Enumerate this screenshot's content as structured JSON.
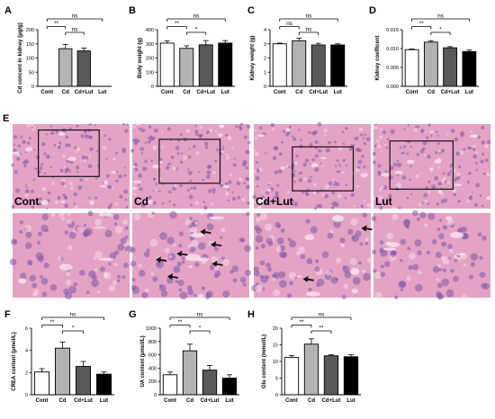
{
  "chart_data": [
    {
      "panel": "A",
      "type": "bar",
      "categories": [
        "Cont",
        "Cd",
        "Cd+Lut",
        "Lut"
      ],
      "values": [
        0,
        133,
        125,
        0
      ],
      "errors": [
        0,
        15,
        10,
        0
      ],
      "ylabel": "Cd concent in kidney (μg/g)",
      "ylim": [
        0,
        200
      ],
      "yticks": [
        "0",
        "50",
        "100",
        "150",
        "200"
      ],
      "colors": [
        "#ffffff",
        "#b3b3b3",
        "#595959",
        "#000000"
      ],
      "sig": [
        {
          "from": 0,
          "to": 3,
          "text": "ns"
        },
        {
          "from": 0,
          "to": 1,
          "text": "**"
        },
        {
          "from": 1,
          "to": 2,
          "text": "ns"
        }
      ]
    },
    {
      "panel": "B",
      "type": "bar",
      "categories": [
        "Cont",
        "Cd",
        "Cd+Lut",
        "Lut"
      ],
      "values": [
        305,
        268,
        293,
        305
      ],
      "errors": [
        15,
        18,
        30,
        18
      ],
      "ylabel": "Body weight (g)",
      "ylim": [
        0,
        400
      ],
      "yticks": [
        "0",
        "100",
        "200",
        "300",
        "400"
      ],
      "colors": [
        "#ffffff",
        "#b3b3b3",
        "#595959",
        "#000000"
      ],
      "sig": [
        {
          "from": 0,
          "to": 3,
          "text": "ns"
        },
        {
          "from": 0,
          "to": 1,
          "text": "**"
        },
        {
          "from": 1,
          "to": 2,
          "text": "*"
        }
      ]
    },
    {
      "panel": "C",
      "type": "bar",
      "categories": [
        "Cont",
        "Cd",
        "Cd+Lut",
        "Lut"
      ],
      "values": [
        3.0,
        3.22,
        2.92,
        2.92
      ],
      "errors": [
        0.05,
        0.18,
        0.12,
        0.08
      ],
      "ylabel": "Kidney weight (g)",
      "ylim": [
        0,
        4
      ],
      "yticks": [
        "0",
        "1",
        "2",
        "3",
        "4"
      ],
      "colors": [
        "#ffffff",
        "#b3b3b3",
        "#595959",
        "#000000"
      ],
      "sig": [
        {
          "from": 0,
          "to": 3,
          "text": "ns"
        },
        {
          "from": 0,
          "to": 1,
          "text": "ns"
        },
        {
          "from": 1,
          "to": 2,
          "text": "ns"
        }
      ]
    },
    {
      "panel": "D",
      "type": "bar",
      "categories": [
        "Cont",
        "Cd",
        "Cd+Lut",
        "Lut"
      ],
      "values": [
        0.0097,
        0.0117,
        0.0102,
        0.0092
      ],
      "errors": [
        0.0002,
        0.0004,
        0.0003,
        0.0004
      ],
      "ylabel": "Kidney coefficent",
      "ylim": [
        0,
        0.015
      ],
      "yticks": [
        "0.000",
        "0.005",
        "0.010",
        "0.015"
      ],
      "colors": [
        "#ffffff",
        "#b3b3b3",
        "#595959",
        "#000000"
      ],
      "sig": [
        {
          "from": 0,
          "to": 3,
          "text": "ns"
        },
        {
          "from": 0,
          "to": 1,
          "text": "**"
        },
        {
          "from": 1,
          "to": 2,
          "text": "*"
        }
      ]
    },
    {
      "panel": "F",
      "type": "bar",
      "categories": [
        "Cont",
        "Cd",
        "Cd+Lut",
        "Lut"
      ],
      "values": [
        2.05,
        4.2,
        2.55,
        1.85
      ],
      "errors": [
        0.3,
        0.55,
        0.45,
        0.2
      ],
      "ylabel": "CREA content (μmol/L)",
      "ylim": [
        0,
        6
      ],
      "yticks": [
        "0",
        "2",
        "4",
        "6"
      ],
      "colors": [
        "#ffffff",
        "#b3b3b3",
        "#595959",
        "#000000"
      ],
      "sig": [
        {
          "from": 0,
          "to": 3,
          "text": "ns"
        },
        {
          "from": 0,
          "to": 1,
          "text": "**"
        },
        {
          "from": 1,
          "to": 2,
          "text": "*"
        }
      ]
    },
    {
      "panel": "G",
      "type": "bar",
      "categories": [
        "Cont",
        "Cd",
        "Cd+Lut",
        "Lut"
      ],
      "values": [
        300,
        660,
        370,
        250
      ],
      "errors": [
        40,
        100,
        70,
        50
      ],
      "ylabel": "UA content (μmol/L)",
      "ylim": [
        0,
        1000
      ],
      "yticks": [
        "0",
        "200",
        "400",
        "600",
        "800",
        "1000"
      ],
      "colors": [
        "#ffffff",
        "#b3b3b3",
        "#595959",
        "#000000"
      ],
      "sig": [
        {
          "from": 0,
          "to": 3,
          "text": "ns"
        },
        {
          "from": 0,
          "to": 1,
          "text": "**"
        },
        {
          "from": 1,
          "to": 2,
          "text": "*"
        }
      ]
    },
    {
      "panel": "H",
      "type": "bar",
      "categories": [
        "Cont",
        "Cd",
        "Cd+Lut",
        "Lut"
      ],
      "values": [
        11.2,
        15.2,
        11.7,
        11.4
      ],
      "errors": [
        0.6,
        1.6,
        0.3,
        0.6
      ],
      "ylabel": "Glu content (mmol/L)",
      "ylim": [
        0,
        20
      ],
      "yticks": [
        "0",
        "5",
        "10",
        "15",
        "20"
      ],
      "colors": [
        "#ffffff",
        "#b3b3b3",
        "#595959",
        "#000000"
      ],
      "sig": [
        {
          "from": 0,
          "to": 3,
          "text": "ns"
        },
        {
          "from": 0,
          "to": 1,
          "text": "**"
        },
        {
          "from": 1,
          "to": 2,
          "text": "**"
        }
      ]
    }
  ],
  "histology": {
    "panel": "E",
    "labels": [
      "Cont",
      "Cd",
      "Cd+Lut",
      "Lut"
    ],
    "tissue_color": "#e4a2c4",
    "nucleus_color": "#7c5aa8",
    "arrows_count": [
      0,
      6,
      2,
      0
    ]
  }
}
